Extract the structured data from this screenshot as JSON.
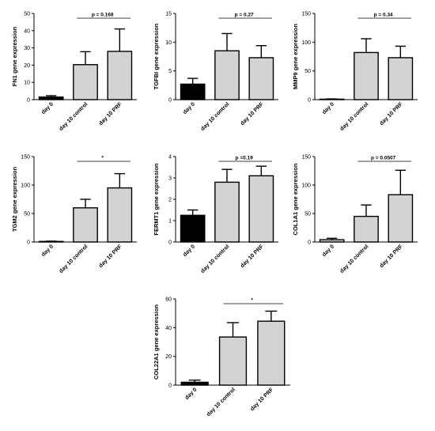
{
  "chart_data": [
    {
      "type": "bar",
      "ylabel": "FN1 gene expression",
      "categories": [
        "day 0",
        "day 10 control",
        "day 10 PRF"
      ],
      "values": [
        1.5,
        20.3,
        28.0
      ],
      "errors": [
        0.8,
        7.5,
        13.0
      ],
      "ylim": [
        0,
        50
      ],
      "yticks": [
        0,
        10,
        20,
        30,
        40,
        50
      ],
      "significance": "p = 0.168",
      "bar_colors": [
        "#000000",
        "#d3d3d3",
        "#d3d3d3"
      ]
    },
    {
      "type": "bar",
      "ylabel": "TGFBI gene expression",
      "categories": [
        "day 0",
        "day 10 control",
        "day 10 PRF"
      ],
      "values": [
        2.7,
        8.5,
        7.3
      ],
      "errors": [
        1.0,
        3.0,
        2.1
      ],
      "ylim": [
        0,
        15
      ],
      "yticks": [
        0,
        5,
        10,
        15
      ],
      "significance": "p = 0.27",
      "bar_colors": [
        "#000000",
        "#d3d3d3",
        "#d3d3d3"
      ]
    },
    {
      "type": "bar",
      "ylabel": "MMP9 gene expression",
      "categories": [
        "day 0",
        "day 10 control",
        "day 10 PRF"
      ],
      "values": [
        0.8,
        82.0,
        73.0
      ],
      "errors": [
        0.5,
        24.0,
        20.0
      ],
      "ylim": [
        0,
        150
      ],
      "yticks": [
        0,
        50,
        100,
        150
      ],
      "significance": "p = 0.34",
      "bar_colors": [
        "#d3d3d3",
        "#d3d3d3",
        "#d3d3d3"
      ]
    },
    {
      "type": "bar",
      "ylabel": "TGM2 gene expression",
      "categories": [
        "day 0",
        "day 10 control",
        "day 10 PRF"
      ],
      "values": [
        1.0,
        60.0,
        95.0
      ],
      "errors": [
        0.5,
        15.0,
        25.0
      ],
      "ylim": [
        0,
        150
      ],
      "yticks": [
        0,
        50,
        100,
        150
      ],
      "significance": "*",
      "bar_colors": [
        "#d3d3d3",
        "#d3d3d3",
        "#d3d3d3"
      ]
    },
    {
      "type": "bar",
      "ylabel": "FERMT1 gene expression",
      "categories": [
        "day 0",
        "day 10 control",
        "day 10 PRF"
      ],
      "values": [
        1.25,
        2.8,
        3.1
      ],
      "errors": [
        0.25,
        0.6,
        0.45
      ],
      "ylim": [
        0,
        4
      ],
      "yticks": [
        0,
        1,
        2,
        3,
        4
      ],
      "significance": "p =0.19",
      "bar_colors": [
        "#000000",
        "#d3d3d3",
        "#d3d3d3"
      ]
    },
    {
      "type": "bar",
      "ylabel": "COL1A1 gene expression",
      "categories": [
        "day 0",
        "day 10 control",
        "day 10 PRF"
      ],
      "values": [
        4.0,
        45.0,
        83.0
      ],
      "errors": [
        2.5,
        20.0,
        43.0
      ],
      "ylim": [
        0,
        150
      ],
      "yticks": [
        0,
        50,
        100,
        150
      ],
      "significance": "p = 0.0507",
      "bar_colors": [
        "#d3d3d3",
        "#d3d3d3",
        "#d3d3d3"
      ]
    },
    {
      "type": "bar",
      "ylabel": "COL22A1 gene expression",
      "categories": [
        "day 0",
        "day 10 control",
        "day 10 PRF"
      ],
      "values": [
        2.0,
        33.5,
        44.5
      ],
      "errors": [
        1.5,
        10.0,
        7.0
      ],
      "ylim": [
        0,
        60
      ],
      "yticks": [
        0,
        20,
        40,
        60
      ],
      "significance": "*",
      "bar_colors": [
        "#000000",
        "#d3d3d3",
        "#d3d3d3"
      ]
    }
  ]
}
